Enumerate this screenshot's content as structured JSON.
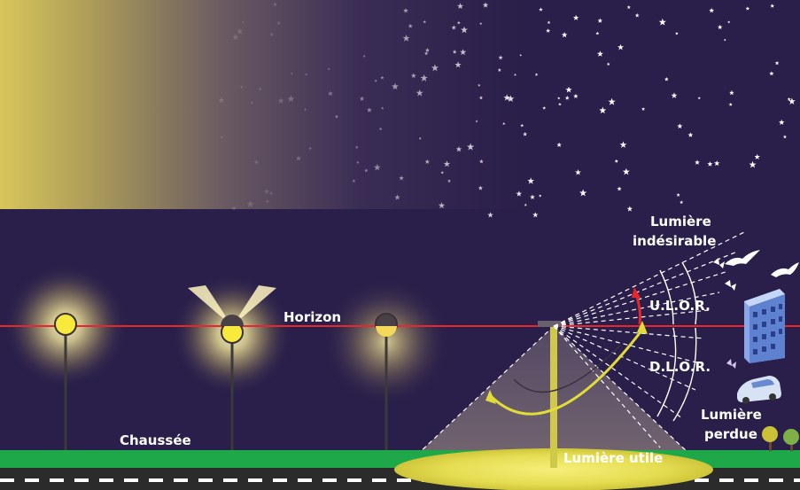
{
  "labels": {
    "horizon": "Horizon",
    "chaussee": "Chaussée",
    "unwanted_line1": "Lumière",
    "unwanted_line2": "indésirable",
    "ulor": "U.L.O.R.",
    "dlor": "D.L.O.R.",
    "lost_line1": "Lumière",
    "lost_line2": "perdue",
    "useful": "Lumière utile"
  },
  "colors": {
    "sky": "#2a1f4a",
    "sky_glow": "#d9c75a",
    "horizon_line": "#e8262b",
    "grass": "#1fa84a",
    "road": "#2b2b2b",
    "lamp_glow": "#fff7b0",
    "light_cone": "#6b5f6f",
    "useful_light": "#e8e15a",
    "arc_yellow": "#e2dc3a",
    "arc_red": "#e8262b"
  },
  "icons": [
    "star-icon",
    "bird-icon",
    "butterfly-icon",
    "building-icon",
    "car-icon",
    "tree-icon",
    "streetlamp-icon"
  ]
}
